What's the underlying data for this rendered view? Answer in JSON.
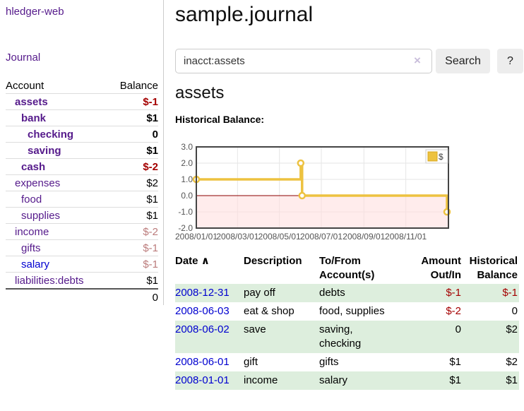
{
  "app": {
    "title": "hledger-web",
    "nav_journal": "Journal"
  },
  "sidebar": {
    "header": {
      "account": "Account",
      "balance": "Balance"
    },
    "accounts": [
      {
        "name": "assets",
        "balance": "$-1"
      },
      {
        "name": "bank",
        "balance": "$1"
      },
      {
        "name": "checking",
        "balance": "0"
      },
      {
        "name": "saving",
        "balance": "$1"
      },
      {
        "name": "cash",
        "balance": "$-2"
      },
      {
        "name": "expenses",
        "balance": "$2"
      },
      {
        "name": "food",
        "balance": "$1"
      },
      {
        "name": "supplies",
        "balance": "$1"
      },
      {
        "name": "income",
        "balance": "$-2"
      },
      {
        "name": "gifts",
        "balance": "$-1"
      },
      {
        "name": "salary",
        "balance": "$-1"
      },
      {
        "name": "liabilities:debts",
        "balance": "$1"
      }
    ],
    "total": "0"
  },
  "main": {
    "title": "sample.journal",
    "search": {
      "value": "inacct:assets",
      "clear_icon": "×",
      "button": "Search",
      "help_button": "?"
    },
    "account_heading": "assets",
    "chart_label": "Historical Balance:"
  },
  "chart_data": {
    "type": "line",
    "style": "step",
    "title": "Historical Balance:",
    "series": [
      {
        "name": "$",
        "color": "#edc240",
        "points": [
          [
            "2008/01/01",
            1
          ],
          [
            "2008/06/01",
            2
          ],
          [
            "2008/06/03",
            0
          ],
          [
            "2008/12/31",
            -1
          ]
        ]
      }
    ],
    "xlim": [
      "2008/01/01",
      "2008/12/31"
    ],
    "ylim": [
      -2,
      3
    ],
    "yticks": [
      3,
      2,
      1,
      0,
      -1,
      -2
    ],
    "xticks": [
      "2008/01/01",
      "2008/03/01",
      "2008/05/01",
      "2008/07/01",
      "2008/09/01",
      "2008/11/01"
    ],
    "legend_position": "top-right",
    "grid": true,
    "zero_line_color": "#8b0000",
    "negative_region_fill": "#ffdddd",
    "tick_color": "#545454"
  },
  "transactions": {
    "headers": {
      "date": "Date",
      "sort_arrow": "∧",
      "description": "Description",
      "tofrom": "To/From\nAccount(s)",
      "amount": "Amount\nOut/In",
      "historical": "Historical\nBalance"
    },
    "rows": [
      {
        "date": "2008-12-31",
        "description": "pay off",
        "accounts": "debts",
        "amount": "$-1",
        "balance": "$-1"
      },
      {
        "date": "2008-06-03",
        "description": "eat & shop",
        "accounts": "food, supplies",
        "amount": "$-2",
        "balance": "0"
      },
      {
        "date": "2008-06-02",
        "description": "save",
        "accounts": "saving,\nchecking",
        "amount": "0",
        "balance": "$2"
      },
      {
        "date": "2008-06-01",
        "description": "gift",
        "accounts": "gifts",
        "amount": "$1",
        "balance": "$2"
      },
      {
        "date": "2008-01-01",
        "description": "income",
        "accounts": "salary",
        "amount": "$1",
        "balance": "$1"
      }
    ]
  }
}
